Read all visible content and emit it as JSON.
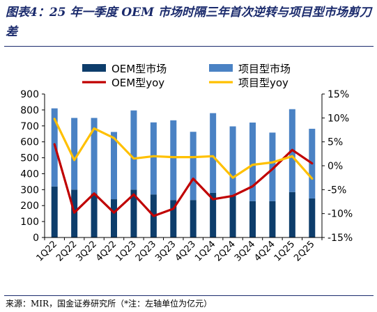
{
  "title": "图表4：25 年一季度 OEM 市场时隔三年首次逆转与项目型市场剪刀差",
  "source": "来源：MIR，国金证券研究所（*注：左轴单位为亿元）",
  "colors": {
    "oem_bar": "#0d3d6b",
    "project_bar": "#4a82c4",
    "oem_line": "#c00000",
    "project_line": "#ffc000",
    "title": "#1a2a6c"
  },
  "chart_data": {
    "type": "bar",
    "stacked": true,
    "categories": [
      "1Q22",
      "2Q22",
      "3Q22",
      "4Q22",
      "1Q23",
      "2Q23",
      "3Q23",
      "4Q23",
      "1Q24",
      "2Q24",
      "3Q24",
      "4Q24",
      "1Q25",
      "2Q25"
    ],
    "series": [
      {
        "name": "OEM型市场",
        "kind": "bar",
        "axis": "left",
        "color": "#0d3d6b",
        "values": [
          320,
          300,
          275,
          240,
          300,
          270,
          235,
          235,
          280,
          260,
          228,
          228,
          285,
          245
        ]
      },
      {
        "name": "项目型市场",
        "kind": "bar",
        "axis": "left",
        "color": "#4a82c4",
        "values": [
          490,
          450,
          475,
          422,
          497,
          452,
          500,
          428,
          500,
          437,
          493,
          430,
          520,
          437
        ]
      },
      {
        "name": "OEM型yoy",
        "kind": "line",
        "axis": "right",
        "color": "#c00000",
        "values": [
          4.5,
          -9.8,
          -5.8,
          -9.8,
          -6.0,
          -10.5,
          -9.0,
          -2.7,
          -7.0,
          -6.3,
          -4.3,
          -0.7,
          3.3,
          0.5
        ]
      },
      {
        "name": "项目型yoy",
        "kind": "line",
        "axis": "right",
        "color": "#ffc000",
        "values": [
          9.8,
          1.2,
          7.8,
          5.8,
          1.5,
          2.0,
          1.8,
          1.8,
          2.0,
          -2.5,
          0.2,
          0.7,
          2.0,
          -2.7
        ]
      }
    ],
    "y_left": {
      "min": 0,
      "max": 900,
      "ticks": [
        0,
        100,
        200,
        300,
        400,
        500,
        600,
        700,
        800,
        900
      ]
    },
    "y_right": {
      "min": -15,
      "max": 15,
      "ticks": [
        -15,
        -10,
        -5,
        0,
        5,
        10,
        15
      ],
      "tick_labels": [
        "-15%",
        "-10%",
        "-5%",
        "0%",
        "5%",
        "10%",
        "15%"
      ]
    },
    "legend_position": "top",
    "grid": false
  }
}
